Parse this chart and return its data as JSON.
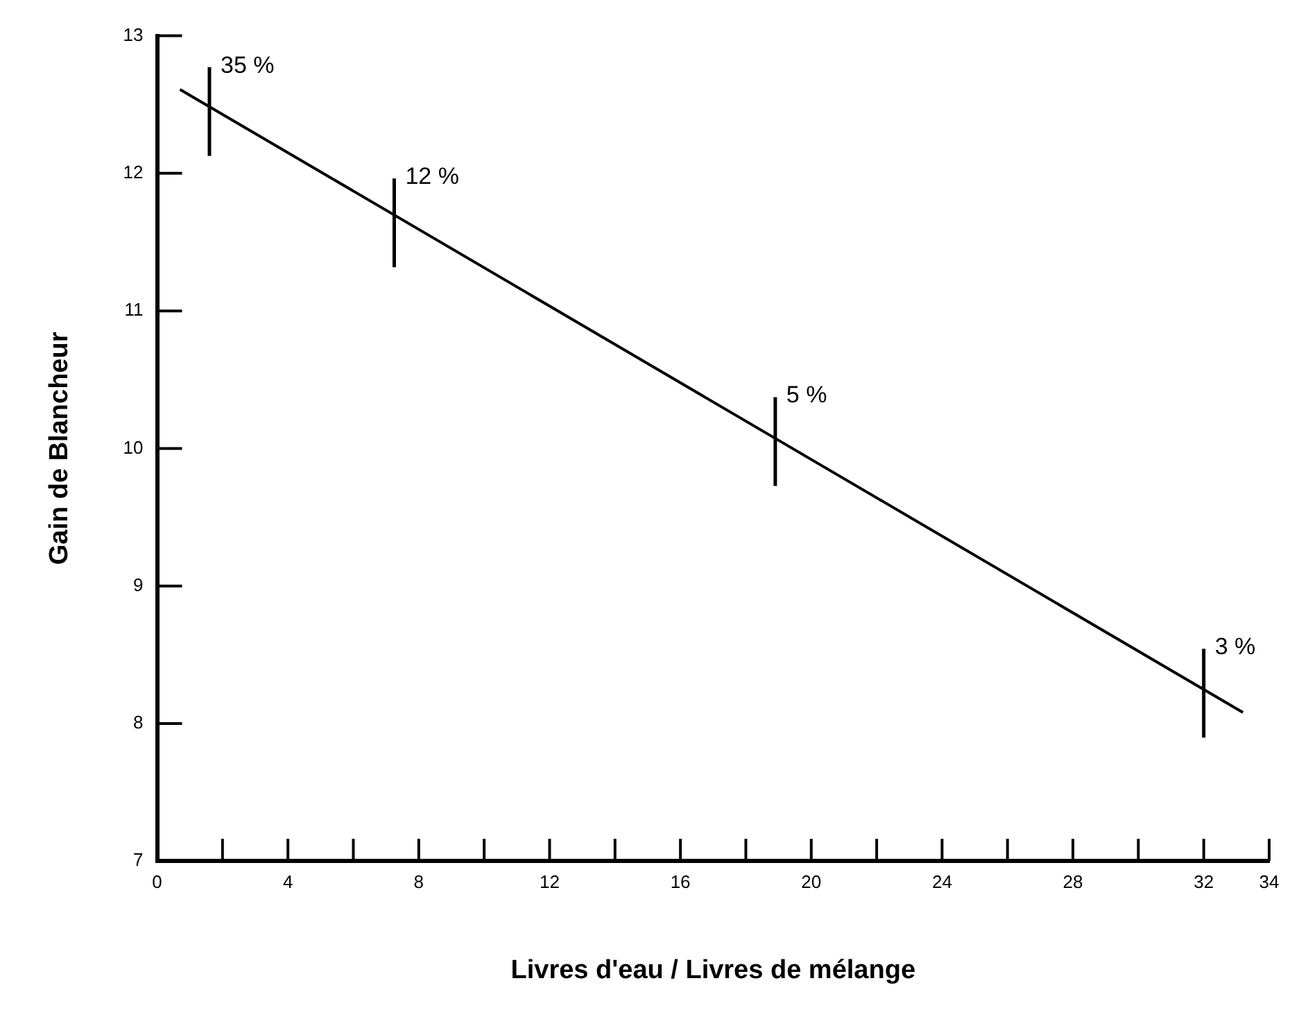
{
  "chart_data": {
    "type": "line",
    "xlabel": "Livres d'eau / Livres de mélange",
    "ylabel": "Gain de Blancheur",
    "series": [
      {
        "color": "#000000",
        "x": [
          0.7,
          33.2
        ],
        "values": [
          12.61,
          8.08
        ]
      }
    ],
    "xlim": [
      0,
      34
    ],
    "ylim": [
      7,
      13
    ],
    "xticks": [
      0,
      {
        "value": 2,
        "label": null
      },
      4,
      {
        "value": 6,
        "label": null
      },
      8,
      {
        "value": 10,
        "label": null
      },
      12,
      {
        "value": 14,
        "label": null
      },
      16,
      {
        "value": 18,
        "label": null
      },
      20,
      {
        "value": 22,
        "label": null
      },
      24,
      {
        "value": 26,
        "label": null
      },
      28,
      {
        "value": 30,
        "label": null
      },
      32,
      34
    ],
    "yticks": [
      7,
      8,
      9,
      10,
      11,
      12,
      13
    ],
    "annotations": [
      {
        "text": "35 %",
        "x": 1.6,
        "y": 12.45
      },
      {
        "text": "12 %",
        "x": 7.25,
        "y": 11.64
      },
      {
        "text": "5 %",
        "x": 18.9,
        "y": 10.05
      },
      {
        "text": "3 %",
        "x": 32,
        "y": 8.22
      }
    ],
    "grid": false,
    "legend": false,
    "marker": "none",
    "line_style": "solid"
  }
}
